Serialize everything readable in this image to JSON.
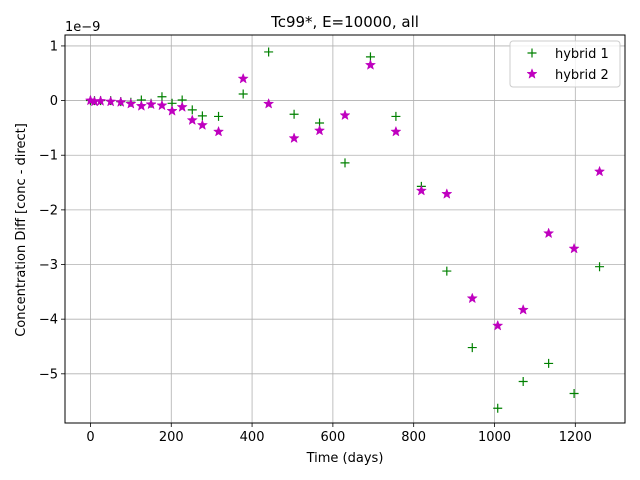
{
  "chart_data": {
    "type": "scatter",
    "title": "Tc99*, E=10000, all",
    "xlabel": "Time (days)",
    "ylabel": "Concentration Diff [conc - direct]",
    "offset_label": "1e−9",
    "xlim": [
      -63,
      1323
    ],
    "ylim": [
      -5.9,
      1.2
    ],
    "x_ticks": [
      0,
      200,
      400,
      600,
      800,
      1000,
      1200
    ],
    "x_tick_labels": [
      "0",
      "200",
      "400",
      "600",
      "800",
      "1000",
      "1200"
    ],
    "y_ticks": [
      -5,
      -4,
      -3,
      -2,
      -1,
      0,
      1
    ],
    "y_tick_labels": [
      "−5",
      "−4",
      "−3",
      "−2",
      "−1",
      "0",
      "1"
    ],
    "grid": true,
    "legend": "top-right",
    "series": [
      {
        "name": "hybrid 1",
        "marker": "plus",
        "color": "#008000",
        "points": [
          [
            0,
            0.0
          ],
          [
            10,
            0.0
          ],
          [
            25,
            0.0
          ],
          [
            50,
            0.0
          ],
          [
            75,
            -0.02
          ],
          [
            100,
            -0.03
          ],
          [
            126,
            0.01
          ],
          [
            150,
            -0.05
          ],
          [
            177,
            0.07
          ],
          [
            202,
            -0.05
          ],
          [
            227,
            0.01
          ],
          [
            252,
            -0.17
          ],
          [
            277,
            -0.28
          ],
          [
            317,
            -0.29
          ],
          [
            378,
            0.12
          ],
          [
            441,
            0.89
          ],
          [
            504,
            -0.25
          ],
          [
            567,
            -0.41
          ],
          [
            630,
            -1.14
          ],
          [
            693,
            0.8
          ],
          [
            756,
            -0.29
          ],
          [
            819,
            -1.57
          ],
          [
            882,
            -3.12
          ],
          [
            945,
            -4.52
          ],
          [
            1008,
            -5.63
          ],
          [
            1071,
            -5.14
          ],
          [
            1134,
            -4.81
          ],
          [
            1197,
            -5.36
          ],
          [
            1260,
            -3.04
          ]
        ]
      },
      {
        "name": "hybrid 2",
        "marker": "star",
        "color": "#bf00bf",
        "points": [
          [
            0,
            0.0
          ],
          [
            10,
            -0.02
          ],
          [
            25,
            -0.01
          ],
          [
            50,
            -0.02
          ],
          [
            75,
            -0.03
          ],
          [
            100,
            -0.06
          ],
          [
            126,
            -0.1
          ],
          [
            150,
            -0.07
          ],
          [
            177,
            -0.09
          ],
          [
            202,
            -0.19
          ],
          [
            227,
            -0.12
          ],
          [
            252,
            -0.36
          ],
          [
            277,
            -0.45
          ],
          [
            317,
            -0.57
          ],
          [
            378,
            0.4
          ],
          [
            441,
            -0.06
          ],
          [
            504,
            -0.69
          ],
          [
            567,
            -0.55
          ],
          [
            630,
            -0.27
          ],
          [
            693,
            0.65
          ],
          [
            756,
            -0.57
          ],
          [
            819,
            -1.65
          ],
          [
            882,
            -1.71
          ],
          [
            945,
            -3.62
          ],
          [
            1008,
            -4.12
          ],
          [
            1071,
            -3.83
          ],
          [
            1134,
            -2.43
          ],
          [
            1197,
            -2.71
          ],
          [
            1260,
            -1.3
          ]
        ]
      }
    ]
  }
}
